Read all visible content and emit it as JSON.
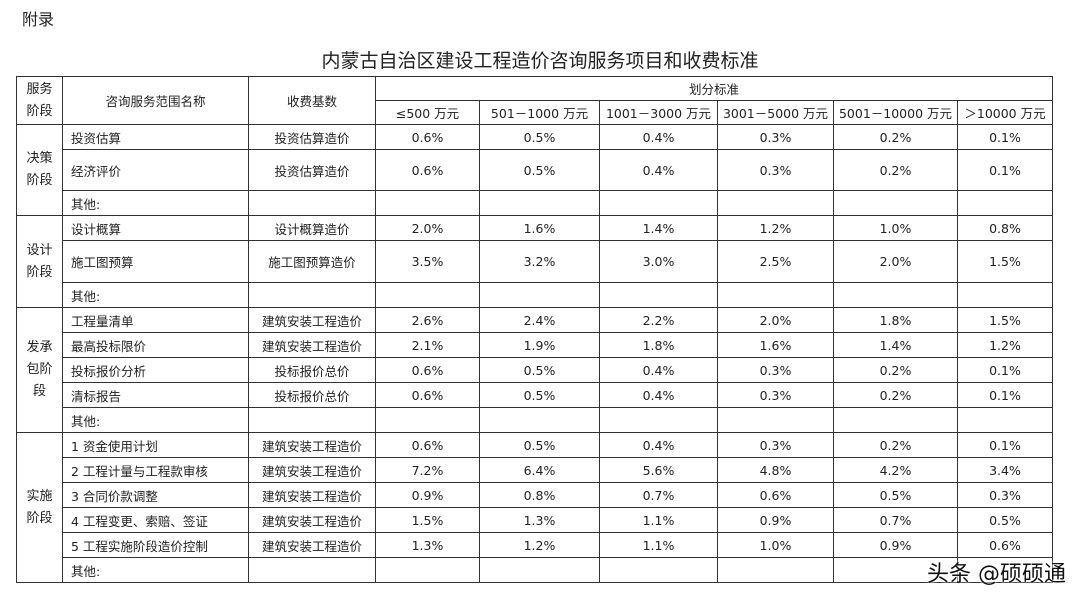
{
  "header": {
    "label": "附录",
    "title": "内蒙古自治区建设工程造价咨询服务项目和收费标准"
  },
  "table": {
    "columns": {
      "stage": "服务阶段",
      "name": "咨询服务范围名称",
      "basis": "收费基数",
      "group": "划分标准",
      "ranges": [
        "≤500 万元",
        "501－1000 万元",
        "1001－3000 万元",
        "3001－5000 万元",
        "5001－10000 万元",
        "＞10000 万元"
      ]
    },
    "groups": [
      {
        "stage": "决策阶段",
        "rows": [
          {
            "name": "投资估算",
            "basis": "投资估算造价",
            "rates": [
              "0.6%",
              "0.5%",
              "0.4%",
              "0.3%",
              "0.2%",
              "0.1%"
            ]
          },
          {
            "name": "经济评价",
            "basis": "投资估算造价",
            "rates": [
              "0.6%",
              "0.5%",
              "0.4%",
              "0.3%",
              "0.2%",
              "0.1%"
            ]
          },
          {
            "name": "其他:"
          }
        ]
      },
      {
        "stage": "设计阶段",
        "rows": [
          {
            "name": "设计概算",
            "basis": "设计概算造价",
            "rates": [
              "2.0%",
              "1.6%",
              "1.4%",
              "1.2%",
              "1.0%",
              "0.8%"
            ]
          },
          {
            "name": "施工图预算",
            "basis": "施工图预算造价",
            "rates": [
              "3.5%",
              "3.2%",
              "3.0%",
              "2.5%",
              "2.0%",
              "1.5%"
            ]
          },
          {
            "name": "其他:"
          }
        ]
      },
      {
        "stage": "发承包阶段",
        "rows": [
          {
            "name": "工程量清单",
            "basis": "建筑安装工程造价",
            "rates": [
              "2.6%",
              "2.4%",
              "2.2%",
              "2.0%",
              "1.8%",
              "1.5%"
            ]
          },
          {
            "name": "最高投标限价",
            "basis": "建筑安装工程造价",
            "rates": [
              "2.1%",
              "1.9%",
              "1.8%",
              "1.6%",
              "1.4%",
              "1.2%"
            ]
          },
          {
            "name": "投标报价分析",
            "basis": "投标报价总价",
            "rates": [
              "0.6%",
              "0.5%",
              "0.4%",
              "0.3%",
              "0.2%",
              "0.1%"
            ]
          },
          {
            "name": "清标报告",
            "basis": "投标报价总价",
            "rates": [
              "0.6%",
              "0.5%",
              "0.4%",
              "0.3%",
              "0.2%",
              "0.1%"
            ]
          },
          {
            "name": "其他:"
          }
        ]
      },
      {
        "stage": "实施阶段",
        "rows": [
          {
            "name": "1 资金使用计划",
            "basis": "建筑安装工程造价",
            "rates": [
              "0.6%",
              "0.5%",
              "0.4%",
              "0.3%",
              "0.2%",
              "0.1%"
            ]
          },
          {
            "name": "2 工程计量与工程款审核",
            "basis": "建筑安装工程造价",
            "rates": [
              "7.2%",
              "6.4%",
              "5.6%",
              "4.8%",
              "4.2%",
              "3.4%"
            ]
          },
          {
            "name": "3 合同价款调整",
            "basis": "建筑安装工程造价",
            "rates": [
              "0.9%",
              "0.8%",
              "0.7%",
              "0.6%",
              "0.5%",
              "0.3%"
            ]
          },
          {
            "name": "4 工程变更、索赔、签证",
            "basis": "建筑安装工程造价",
            "rates": [
              "1.5%",
              "1.3%",
              "1.1%",
              "0.9%",
              "0.7%",
              "0.5%"
            ]
          },
          {
            "name": "5 工程实施阶段造价控制",
            "basis": "建筑安装工程造价",
            "rates": [
              "1.3%",
              "1.2%",
              "1.1%",
              "1.0%",
              "0.9%",
              "0.6%"
            ]
          },
          {
            "name": "其他:"
          }
        ]
      }
    ]
  },
  "watermark": "头条 @硕硕通"
}
